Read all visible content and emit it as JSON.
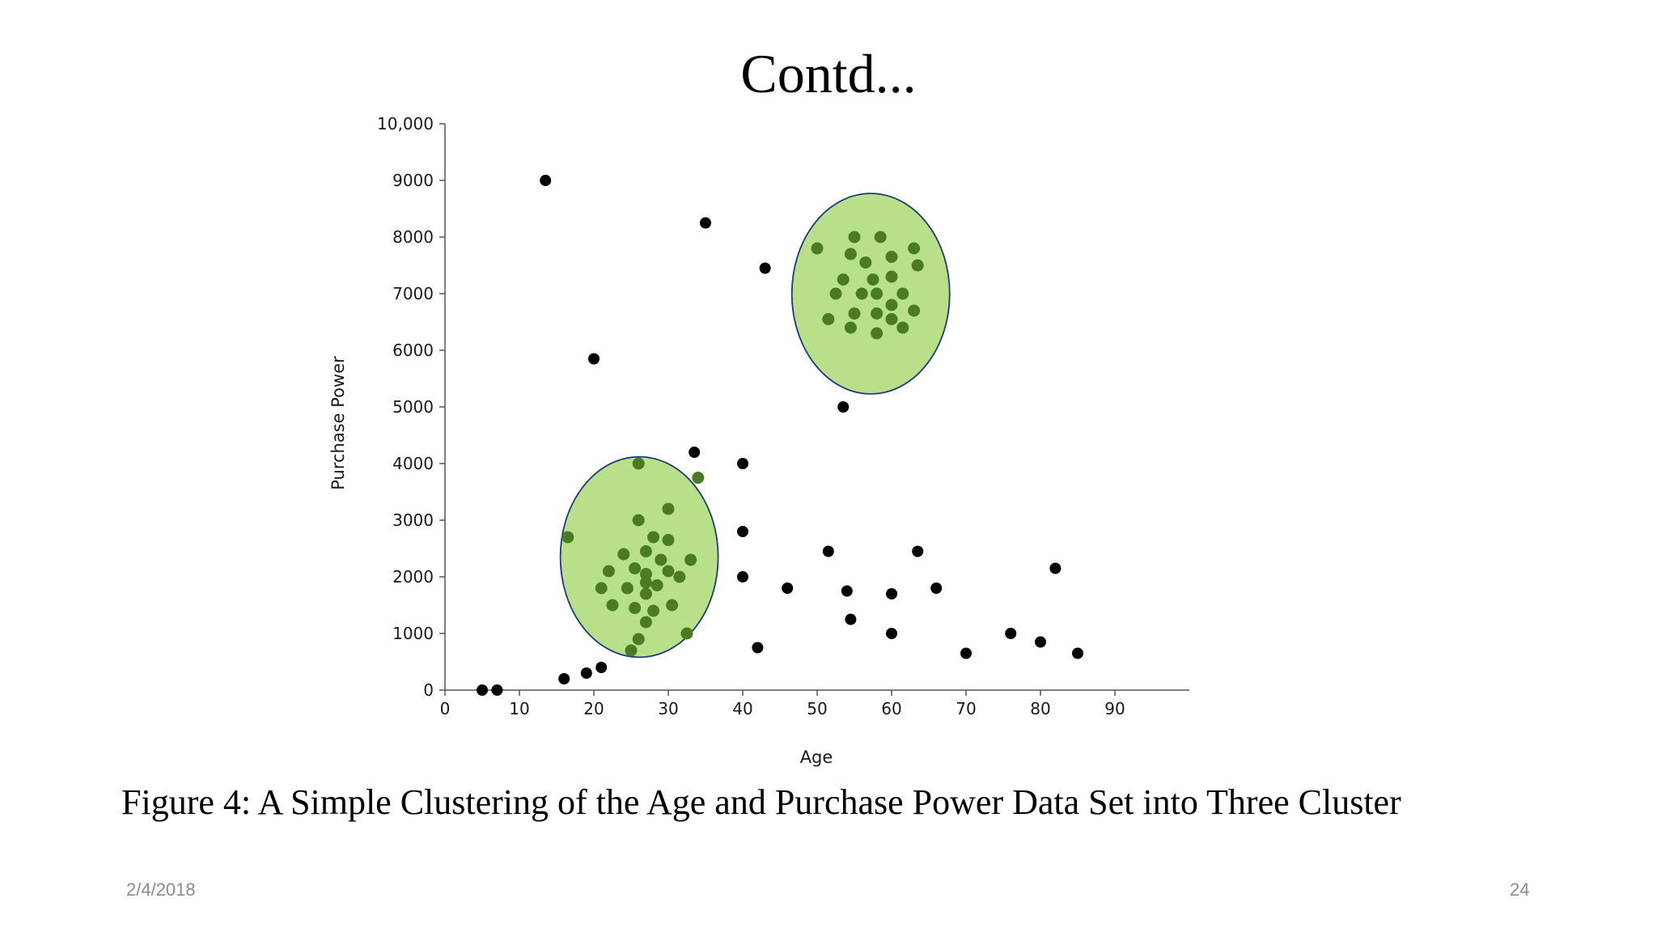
{
  "slide": {
    "title": "Contd...",
    "caption": "Figure 4: A Simple Clustering of the Age and Purchase Power Data Set into Three Cluster",
    "date": "2/4/2018",
    "page_number": "24"
  },
  "chart_data": {
    "type": "scatter",
    "xlabel": "Age",
    "ylabel": "Purchase Power",
    "xlim": [
      0,
      100
    ],
    "ylim": [
      0,
      10000
    ],
    "x_ticks": [
      "0",
      "10",
      "20",
      "30",
      "40",
      "50",
      "60",
      "70",
      "80",
      "90"
    ],
    "y_ticks": [
      "0",
      "1000",
      "2000",
      "3000",
      "4000",
      "5000",
      "6000",
      "7000",
      "8000",
      "9000",
      "10,000"
    ],
    "grid": false,
    "legend": "none",
    "colors": {
      "outlier_point": "#000000",
      "cluster_point": "#4a7a22",
      "cluster_fill": "#b8e08a",
      "cluster_outline": "#1f3a7a"
    },
    "clusters": [
      {
        "center": [
          26.1,
          2350
        ],
        "radius": [
          10.6,
          1770
        ],
        "points": [
          [
            26,
            4000
          ],
          [
            34,
            3750
          ],
          [
            26,
            3000
          ],
          [
            30,
            3200
          ],
          [
            16.5,
            2700
          ],
          [
            28,
            2700
          ],
          [
            30,
            2650
          ],
          [
            24,
            2400
          ],
          [
            27,
            2450
          ],
          [
            29,
            2300
          ],
          [
            33,
            2300
          ],
          [
            22,
            2100
          ],
          [
            25.5,
            2150
          ],
          [
            27,
            2050
          ],
          [
            30,
            2100
          ],
          [
            31.5,
            2000
          ],
          [
            21,
            1800
          ],
          [
            24.5,
            1800
          ],
          [
            27,
            1900
          ],
          [
            28.5,
            1850
          ],
          [
            27,
            1700
          ],
          [
            22.5,
            1500
          ],
          [
            25.5,
            1450
          ],
          [
            28,
            1400
          ],
          [
            30.5,
            1500
          ],
          [
            27,
            1200
          ],
          [
            32.5,
            1000
          ],
          [
            26,
            900
          ],
          [
            25,
            700
          ]
        ]
      },
      {
        "center": [
          57.2,
          7000
        ],
        "radius": [
          10.6,
          1770
        ],
        "points": [
          [
            55,
            8000
          ],
          [
            58.5,
            8000
          ],
          [
            50,
            7800
          ],
          [
            54.5,
            7700
          ],
          [
            60,
            7650
          ],
          [
            63,
            7800
          ],
          [
            56.5,
            7550
          ],
          [
            63.5,
            7500
          ],
          [
            53.5,
            7250
          ],
          [
            57.5,
            7250
          ],
          [
            60,
            7300
          ],
          [
            52.5,
            7000
          ],
          [
            56,
            7000
          ],
          [
            58,
            7000
          ],
          [
            61.5,
            7000
          ],
          [
            60,
            6800
          ],
          [
            55,
            6650
          ],
          [
            58,
            6650
          ],
          [
            63,
            6700
          ],
          [
            51.5,
            6550
          ],
          [
            60,
            6550
          ],
          [
            54.5,
            6400
          ],
          [
            61.5,
            6400
          ],
          [
            58,
            6300
          ]
        ]
      }
    ],
    "outliers": [
      [
        5,
        0
      ],
      [
        7,
        0
      ],
      [
        16,
        200
      ],
      [
        19,
        300
      ],
      [
        21,
        400
      ],
      [
        13.5,
        9000
      ],
      [
        35,
        8250
      ],
      [
        43,
        7450
      ],
      [
        20,
        5850
      ],
      [
        53.5,
        5000
      ],
      [
        33.5,
        4200
      ],
      [
        40,
        4000
      ],
      [
        40,
        2800
      ],
      [
        40,
        2000
      ],
      [
        42,
        750
      ],
      [
        46,
        1800
      ],
      [
        51.5,
        2450
      ],
      [
        54,
        1750
      ],
      [
        54.5,
        1250
      ],
      [
        60,
        1700
      ],
      [
        60,
        1000
      ],
      [
        63.5,
        2450
      ],
      [
        66,
        1800
      ],
      [
        70,
        650
      ],
      [
        76,
        1000
      ],
      [
        80,
        850
      ],
      [
        82,
        2150
      ],
      [
        85,
        650
      ]
    ]
  }
}
